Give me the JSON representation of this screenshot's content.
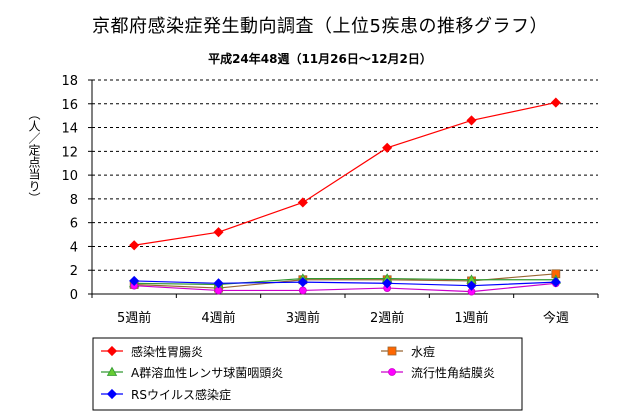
{
  "chart_data": {
    "type": "line",
    "title": "京都府感染症発生動向調査（上位5疾患の推移グラフ）",
    "subtitle": "平成24年48週（11月26日～12月2日）",
    "ylabel": "（人／定点当り）",
    "xlabel": "",
    "categories": [
      "5週前",
      "4週前",
      "3週前",
      "2週前",
      "1週前",
      "今週"
    ],
    "ylim": [
      0,
      18
    ],
    "yticks": [
      0,
      2,
      4,
      6,
      8,
      10,
      12,
      14,
      16,
      18
    ],
    "grid": true,
    "legend_position": "bottom",
    "series": [
      {
        "name": "感染性胃腸炎",
        "color": "#ff0000",
        "marker": "diamond",
        "values": [
          4.1,
          5.2,
          7.7,
          12.3,
          14.6,
          16.1
        ]
      },
      {
        "name": "水痘",
        "color": "#996633",
        "marker": "square",
        "markerFill": "#ff6600",
        "values": [
          0.8,
          0.5,
          1.2,
          1.2,
          1.1,
          1.7
        ]
      },
      {
        "name": "A群溶血性レンサ球菌咽頭炎",
        "color": "#339933",
        "marker": "triangle",
        "markerFill": "#66cc33",
        "values": [
          0.9,
          0.8,
          1.3,
          1.3,
          1.2,
          1.2
        ]
      },
      {
        "name": "流行性角結膜炎",
        "color": "#cc00cc",
        "marker": "circle",
        "markerFill": "#ff00ff",
        "values": [
          0.7,
          0.3,
          0.3,
          0.5,
          0.2,
          0.9
        ]
      },
      {
        "name": "RSウイルス感染症",
        "color": "#0000ff",
        "marker": "diamond",
        "values": [
          1.1,
          0.9,
          1.0,
          0.9,
          0.7,
          1.0
        ]
      }
    ]
  }
}
